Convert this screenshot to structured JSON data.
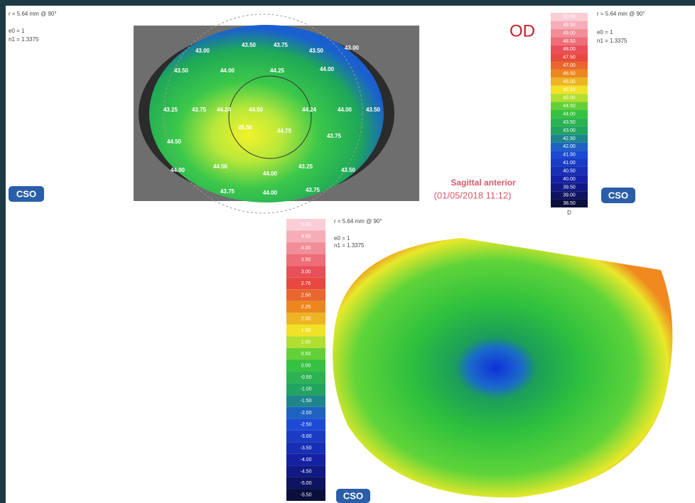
{
  "top_left": {
    "radius": "r = 5.64 mm @ 90°",
    "e0": "e0 = 1",
    "n1": "n1 = 1.3375",
    "logo": "CSO"
  },
  "top_map": {
    "eye": "OD",
    "labels": [
      "43.00",
      "43.50",
      "43.75",
      "43.50",
      "43.00",
      "43.50",
      "44.00",
      "44.25",
      "44.00",
      "43.25",
      "43.75",
      "44.24",
      "44.50",
      "44.24",
      "44.00",
      "43.50",
      "44.50",
      "45.56",
      "44.75",
      "43.75",
      "44.00",
      "44.56",
      "44.00",
      "43.25",
      "43.75",
      "44.00",
      "43.75",
      "43.50"
    ],
    "title": "Sagittal anterior",
    "date": "(01/05/2018 11:12)"
  },
  "top_scale": {
    "labels": [
      "50.00",
      "49.50",
      "49.00",
      "48.50",
      "48.00",
      "47.50",
      "47.00",
      "46.50",
      "46.00",
      "45.50",
      "45.00",
      "44.50",
      "44.00",
      "43.50",
      "43.00",
      "42.50",
      "42.00",
      "41.50",
      "41.00",
      "40.50",
      "40.00",
      "39.50",
      "39.00",
      "38.50"
    ],
    "unit": "D"
  },
  "top_right": {
    "radius": "r = 5.64 mm @ 90°",
    "e0": "e0 = 1",
    "n1": "n1 = 1.3375",
    "logo": "CSO"
  },
  "bottom_scale": {
    "labels": [
      "5.00",
      "4.50",
      "4.00",
      "3.50",
      "3.00",
      "2.75",
      "2.50",
      "2.25",
      "2.00",
      "1.50",
      "1.00",
      "0.50",
      "0.00",
      "-0.50",
      "-1.00",
      "-1.50",
      "-2.00",
      "-2.50",
      "-3.00",
      "-3.50",
      "-4.00",
      "-4.50",
      "-5.00",
      "-5.50"
    ]
  },
  "bottom_info": {
    "radius": "r = 5.64 mm @ 90°",
    "e0": "e0 = 1",
    "n1": "n1 = 1.3375",
    "logo": "CSO"
  }
}
